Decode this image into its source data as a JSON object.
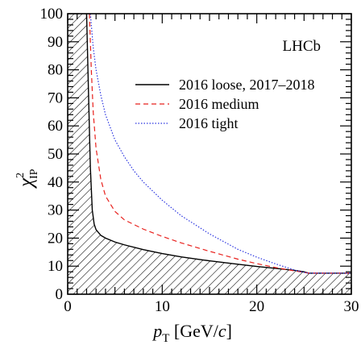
{
  "chart_data": {
    "type": "line",
    "annotation": "LHCb",
    "xlabel": {
      "main": "p",
      "sub": "T",
      "unit_pre": " [GeV/",
      "unit_it": "c",
      "unit_post": "]"
    },
    "ylabel": {
      "main": "χ",
      "sup": "2",
      "sub": "IP"
    },
    "xlim": [
      0,
      30
    ],
    "ylim": [
      0,
      100
    ],
    "x_ticks": [
      "0",
      "10",
      "20",
      "30"
    ],
    "y_ticks": [
      "0",
      "10",
      "20",
      "30",
      "40",
      "50",
      "60",
      "70",
      "80",
      "90",
      "100"
    ],
    "excluded_region": "hatched below the 2016 loose, 2017–2018 curve",
    "legend_position": "top-right",
    "series": [
      {
        "name": "2016 loose, 2017–2018",
        "color": "#000000",
        "style": "solid",
        "x": [
          2.0,
          2.2,
          2.4,
          2.6,
          2.8,
          3.0,
          3.5,
          4,
          5,
          6,
          8,
          10,
          12,
          15,
          18,
          20,
          22,
          24,
          25,
          25.5,
          30
        ],
        "y": [
          100,
          72,
          45,
          30,
          25,
          23,
          21,
          20,
          18.6,
          17.6,
          15.9,
          14.5,
          13.3,
          11.9,
          10.7,
          9.9,
          9.2,
          8.5,
          8.0,
          7.5,
          7.5
        ]
      },
      {
        "name": "2016 medium",
        "color": "#e8211d",
        "style": "dashed",
        "x": [
          2.3,
          2.5,
          2.7,
          3.0,
          3.5,
          4,
          5,
          6,
          8,
          10,
          12,
          15,
          18,
          20,
          22,
          24,
          25,
          25.5,
          30
        ],
        "y": [
          100,
          80,
          65,
          52,
          41,
          35,
          29.5,
          26.5,
          23.2,
          20.6,
          18.3,
          15.3,
          12.5,
          10.9,
          9.5,
          8.3,
          7.8,
          7.5,
          7.5
        ]
      },
      {
        "name": "2016 tight",
        "color": "#2b35e0",
        "style": "dotted",
        "x": [
          2.4,
          2.7,
          3.0,
          3.5,
          4,
          5,
          6,
          7,
          8,
          10,
          12,
          15,
          18,
          20,
          22,
          24,
          25,
          25.5,
          30
        ],
        "y": [
          100,
          88,
          80,
          71,
          64,
          55,
          49,
          44,
          40,
          33.5,
          28,
          21.5,
          16,
          13.2,
          10.8,
          8.6,
          7.8,
          7.5,
          7.5
        ]
      }
    ]
  }
}
